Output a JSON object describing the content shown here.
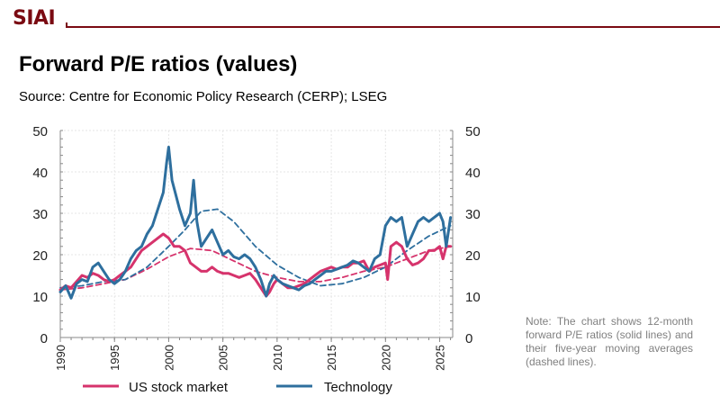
{
  "header": {
    "logo": "SIAI",
    "title": "Forward P/E ratios (values)",
    "source": "Source: Centre for Economic Policy Research (CERP); LSEG"
  },
  "note": "Note: The chart shows 12-month forward P/E ratios (solid lines) and their five-year moving averages (dashed lines).",
  "colors": {
    "brand": "#7a0a12",
    "us": "#d6336c",
    "tech": "#2e6f9e"
  },
  "chart_data": {
    "type": "line",
    "title": "Forward P/E ratios (values)",
    "xlabel": "",
    "ylabel": "",
    "xlim": [
      1990,
      2026.2
    ],
    "ylim": [
      0,
      50
    ],
    "x_ticks": [
      "1990",
      "1995",
      "2000",
      "2005",
      "2010",
      "2015",
      "2020",
      "2025"
    ],
    "y_ticks": [
      "0",
      "10",
      "20",
      "30",
      "40",
      "50"
    ],
    "grid": true,
    "legend": "bottom",
    "series": [
      {
        "name": "US stock market",
        "style": "solid",
        "color": "#d6336c",
        "x": [
          1990,
          1990.5,
          1991,
          1991.5,
          1992,
          1992.5,
          1993,
          1993.5,
          1994,
          1994.5,
          1995,
          1995.5,
          1996,
          1996.5,
          1997,
          1997.5,
          1998,
          1998.5,
          1999,
          1999.5,
          2000,
          2000.5,
          2001,
          2001.5,
          2002,
          2002.5,
          2003,
          2003.5,
          2004,
          2004.5,
          2005,
          2005.5,
          2006,
          2006.5,
          2007,
          2007.5,
          2008,
          2008.5,
          2009,
          2009.3,
          2009.7,
          2010,
          2010.5,
          2011,
          2011.5,
          2012,
          2012.5,
          2013,
          2013.5,
          2014,
          2014.5,
          2015,
          2015.5,
          2016,
          2016.5,
          2017,
          2017.5,
          2018,
          2018.5,
          2019,
          2019.5,
          2020,
          2020.2,
          2020.5,
          2021,
          2021.5,
          2022,
          2022.5,
          2023,
          2023.5,
          2024,
          2024.5,
          2025,
          2025.3,
          2025.6,
          2026
        ],
        "values": [
          11.5,
          12.5,
          12,
          13.5,
          15,
          14.5,
          15.5,
          15,
          14,
          13.5,
          14,
          15,
          16,
          17,
          19,
          21,
          22,
          23,
          24,
          25,
          24,
          22,
          22,
          21,
          18,
          17,
          16,
          16,
          17,
          16,
          15.5,
          15.5,
          15,
          14.5,
          15,
          15.5,
          14,
          12,
          10,
          11,
          13,
          14,
          13,
          12,
          12,
          12.5,
          13,
          14,
          15,
          16,
          16.5,
          17,
          16.5,
          17,
          17,
          18,
          18,
          18.5,
          16,
          17,
          17.5,
          18,
          14,
          22,
          23,
          22,
          19,
          17.5,
          18,
          19,
          21,
          21,
          22,
          19,
          22,
          22
        ]
      },
      {
        "name": "Technology",
        "style": "solid",
        "color": "#2e6f9e",
        "x": [
          1990,
          1990.5,
          1991,
          1991.5,
          1992,
          1992.5,
          1993,
          1993.5,
          1994,
          1994.5,
          1995,
          1995.5,
          1996,
          1996.5,
          1997,
          1997.5,
          1998,
          1998.5,
          1999,
          1999.5,
          1999.8,
          2000,
          2000.3,
          2000.6,
          2001,
          2001.5,
          2002,
          2002.3,
          2002.6,
          2003,
          2003.5,
          2004,
          2004.5,
          2005,
          2005.5,
          2006,
          2006.5,
          2007,
          2007.5,
          2008,
          2008.5,
          2009,
          2009.3,
          2009.7,
          2010,
          2010.5,
          2011,
          2011.5,
          2012,
          2012.5,
          2013,
          2013.5,
          2014,
          2014.5,
          2015,
          2015.5,
          2016,
          2016.5,
          2017,
          2017.5,
          2018,
          2018.5,
          2019,
          2019.5,
          2020,
          2020.5,
          2021,
          2021.5,
          2022,
          2022.5,
          2023,
          2023.5,
          2024,
          2024.5,
          2025,
          2025.3,
          2025.6,
          2026
        ],
        "values": [
          11,
          12.5,
          9.5,
          13,
          14,
          13.5,
          17,
          18,
          16,
          14,
          13,
          14,
          16,
          19,
          21,
          22,
          25,
          27,
          31,
          35,
          42,
          46,
          38,
          35,
          31,
          27,
          30,
          38,
          28,
          22,
          24,
          26,
          23,
          20,
          21,
          19.5,
          19,
          20,
          19,
          17,
          14,
          10,
          13,
          15,
          14,
          13,
          12.5,
          12,
          11.5,
          12.5,
          13,
          14,
          15,
          16,
          16,
          16.5,
          17,
          17.5,
          18.5,
          18,
          17,
          16,
          19,
          20,
          27,
          29,
          28,
          29,
          22,
          25,
          28,
          29,
          28,
          29,
          30,
          28,
          22,
          29
        ]
      },
      {
        "name": "US stock market (5y MA)",
        "style": "dashed",
        "color": "#d6336c",
        "x": [
          1990,
          1992,
          1994,
          1996,
          1998,
          2000,
          2002,
          2004,
          2006,
          2008,
          2010,
          2012,
          2014,
          2016,
          2018,
          2020,
          2022,
          2024,
          2026
        ],
        "values": [
          11.5,
          12,
          13,
          14,
          16.5,
          19.5,
          21.5,
          21,
          18.5,
          16,
          14.5,
          13.5,
          13.5,
          14.5,
          16,
          17,
          19,
          21,
          22
        ]
      },
      {
        "name": "Technology (5y MA)",
        "style": "dashed",
        "color": "#2e6f9e",
        "x": [
          1990,
          1992,
          1994,
          1996,
          1998,
          2000,
          2001.5,
          2003,
          2004.5,
          2006,
          2008,
          2010,
          2012,
          2014,
          2016,
          2018,
          2020,
          2022,
          2024,
          2026
        ],
        "values": [
          12,
          12.5,
          13.5,
          14,
          17,
          22,
          26,
          30.5,
          31,
          28,
          22,
          17.5,
          14.5,
          12.5,
          13,
          14.5,
          17,
          21,
          24.5,
          27
        ]
      }
    ]
  }
}
